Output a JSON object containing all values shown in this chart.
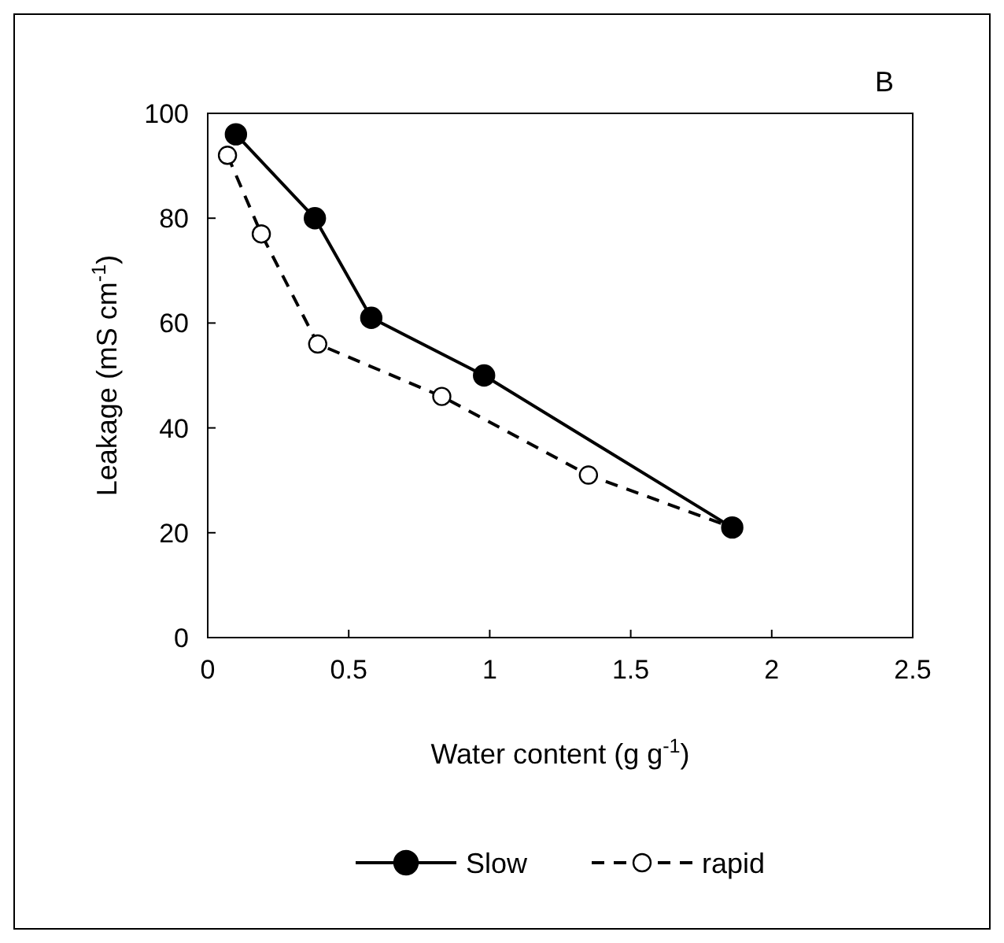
{
  "chart_data": {
    "type": "line",
    "title": "B",
    "xlabel": "Water content (g g$^{-1}$)",
    "ylabel": "Leakage (mS cm$^{-1}$)",
    "xlim": [
      0,
      2.5
    ],
    "xticks": [
      0,
      0.5,
      1,
      1.5,
      2,
      2.5
    ],
    "ylim": [
      0,
      100
    ],
    "yticks": [
      0,
      20,
      40,
      60,
      80,
      100
    ],
    "grid": false,
    "legend": "bottom",
    "series": [
      {
        "name": "Slow",
        "color": "#000000",
        "marker": "circle",
        "line_style": "solid",
        "x": [
          0.1,
          0.38,
          0.58,
          0.98,
          1.86
        ],
        "values": [
          96,
          80,
          61,
          50,
          21
        ]
      },
      {
        "name": "rapid",
        "color": "#000000",
        "marker": "circle",
        "line_style": "dashed",
        "x": [
          0.07,
          0.19,
          0.39,
          0.83,
          1.35,
          1.86
        ],
        "values": [
          92,
          77,
          56,
          46,
          31,
          21
        ]
      }
    ]
  }
}
